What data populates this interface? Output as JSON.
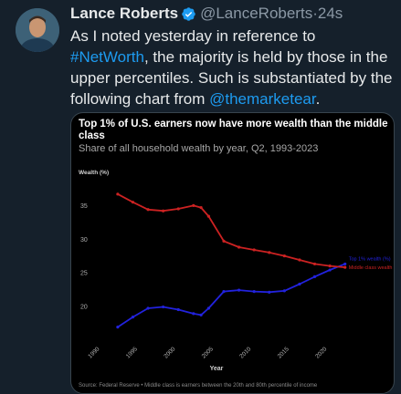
{
  "tweet": {
    "author_name": "Lance Roberts",
    "handle": "@LanceRoberts",
    "separator": "·",
    "time": "24s",
    "text_1": "As I noted yesterday in reference to ",
    "hashtag": "#NetWorth",
    "text_2": ", the majority is held by those in the upper percentiles. Such is substantiated by the following chart from ",
    "mention": "@themarketear",
    "text_3": "."
  },
  "icons": {
    "verified": "verified-badge-icon",
    "avatar": "avatar"
  },
  "colors": {
    "background": "#15202b",
    "link": "#1d9bf0",
    "verified": "#1d9bf0",
    "top1": "#2222dd",
    "middle": "#cc2222"
  },
  "chart_data": {
    "type": "line",
    "title": "Top 1% of U.S. earners now have more wealth than the middle class",
    "subtitle": "Share of all household wealth by year, Q2, 1993-2023",
    "ylabel": "Wealth (%)",
    "xlabel": "Year",
    "xlim": [
      1990,
      2024
    ],
    "ylim": [
      16,
      38
    ],
    "xticks": [
      "1990",
      "1995",
      "2000",
      "2005",
      "2010",
      "2015",
      "2020"
    ],
    "yticks": [
      "20",
      "25",
      "30",
      "35"
    ],
    "grid": false,
    "series": [
      {
        "name": "Top 1% wealth (%)",
        "color": "#2222dd",
        "x": [
          1993,
          1995,
          1997,
          1999,
          2001,
          2003,
          2004,
          2005,
          2007,
          2009,
          2011,
          2013,
          2015,
          2017,
          2019,
          2021,
          2023
        ],
        "y": [
          17.0,
          18.5,
          19.8,
          20.0,
          19.6,
          19.0,
          18.8,
          19.8,
          22.3,
          22.5,
          22.3,
          22.2,
          22.4,
          23.4,
          24.5,
          25.5,
          26.4
        ]
      },
      {
        "name": "Middle class wealth (%)",
        "color": "#cc2222",
        "x": [
          1993,
          1995,
          1997,
          1999,
          2001,
          2003,
          2004,
          2005,
          2007,
          2009,
          2011,
          2013,
          2015,
          2017,
          2019,
          2021,
          2023
        ],
        "y": [
          36.8,
          35.6,
          34.5,
          34.3,
          34.6,
          35.1,
          34.8,
          33.5,
          29.8,
          28.9,
          28.5,
          28.1,
          27.6,
          27.0,
          26.4,
          26.1,
          25.9
        ]
      }
    ],
    "source": "Source: Federal Reserve • Middle class is earners between the 20th and 80th percentile of income"
  }
}
